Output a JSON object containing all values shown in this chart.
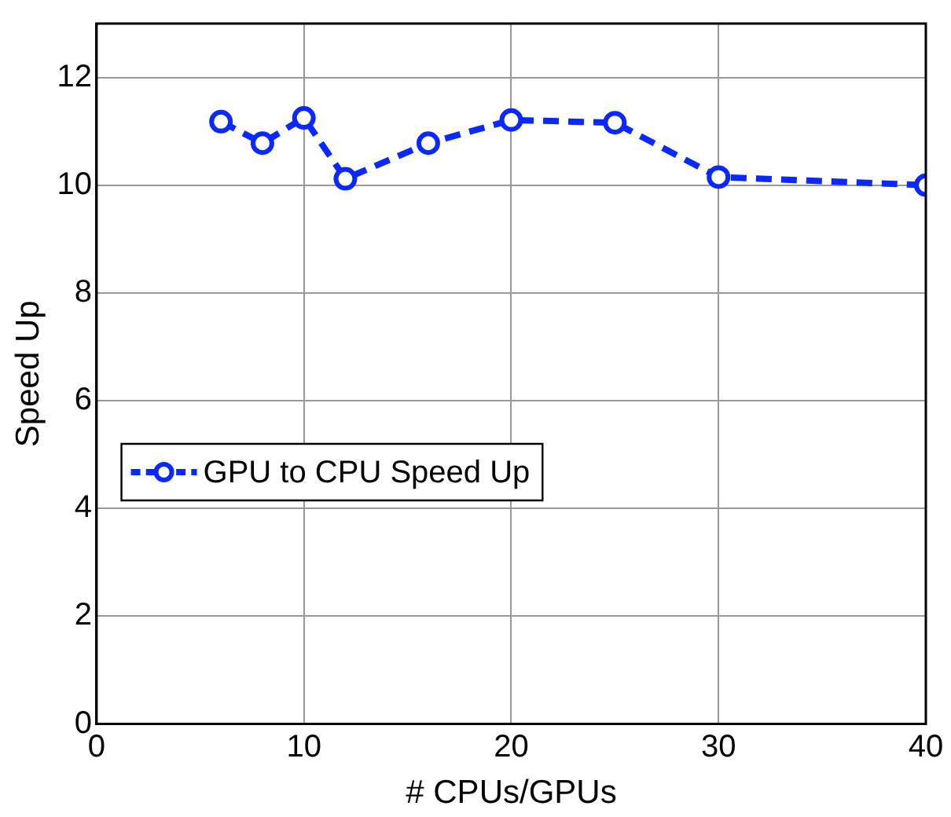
{
  "chart_data": {
    "type": "line",
    "xlabel": "# CPUs/GPUs",
    "ylabel": "Speed Up",
    "x": [
      6,
      8,
      10,
      12,
      16,
      20,
      25,
      30,
      40
    ],
    "series": [
      {
        "name": "GPU to CPU Speed Up",
        "color": "#0a28ff",
        "values": [
          11.18,
          10.78,
          11.25,
          10.12,
          10.78,
          11.21,
          11.16,
          10.15,
          10.0
        ]
      }
    ],
    "xlim": [
      0,
      40
    ],
    "xticks": [
      0,
      10,
      20,
      30,
      40
    ],
    "ylim": [
      0,
      13
    ],
    "yticks": [
      0,
      2,
      4,
      6,
      8,
      10,
      12
    ],
    "grid": true,
    "legend": "left",
    "marker": "circle",
    "line_style": "dashed"
  }
}
